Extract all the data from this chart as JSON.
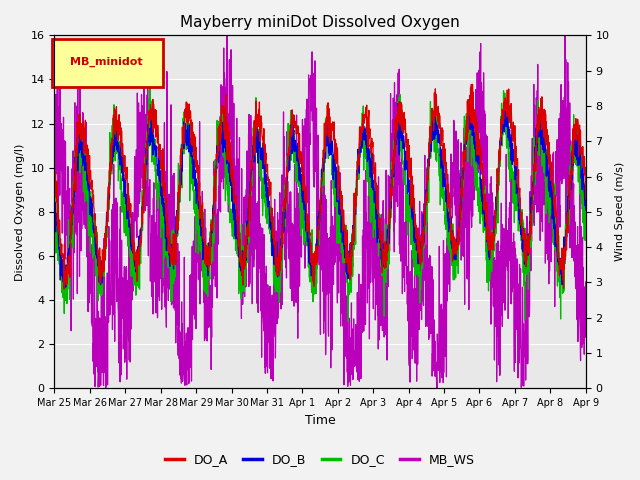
{
  "title": "Mayberry miniDot Dissolved Oxygen",
  "xlabel": "Time",
  "ylabel_left": "Dissolved Oxygen (mg/l)",
  "ylabel_right": "Wind Speed (m/s)",
  "ylim_left": [
    0,
    16
  ],
  "ylim_right": [
    0.0,
    10.0
  ],
  "yticks_left": [
    0,
    2,
    4,
    6,
    8,
    10,
    12,
    14,
    16
  ],
  "yticks_right": [
    0.0,
    1.0,
    2.0,
    3.0,
    4.0,
    5.0,
    6.0,
    7.0,
    8.0,
    9.0,
    10.0
  ],
  "xtick_labels": [
    "Mar 25",
    "Mar 26",
    "Mar 27",
    "Mar 28",
    "Mar 29",
    "Mar 30",
    "Mar 31",
    "Apr 1",
    "Apr 2",
    "Apr 3",
    "Apr 4",
    "Apr 5",
    "Apr 6",
    "Apr 7",
    "Apr 8",
    "Apr 9"
  ],
  "colors": {
    "DO_A": "#dd0000",
    "DO_B": "#0000dd",
    "DO_C": "#00bb00",
    "MB_WS": "#bb00bb"
  },
  "legend_label": "MB_minidot",
  "legend_box_edgecolor": "#cc0000",
  "legend_box_facecolor": "#ffff99",
  "plot_bg_color": "#e8e8e8",
  "fig_bg_color": "#f2f2f2",
  "grid_color": "#ffffff",
  "linewidth": 0.9
}
